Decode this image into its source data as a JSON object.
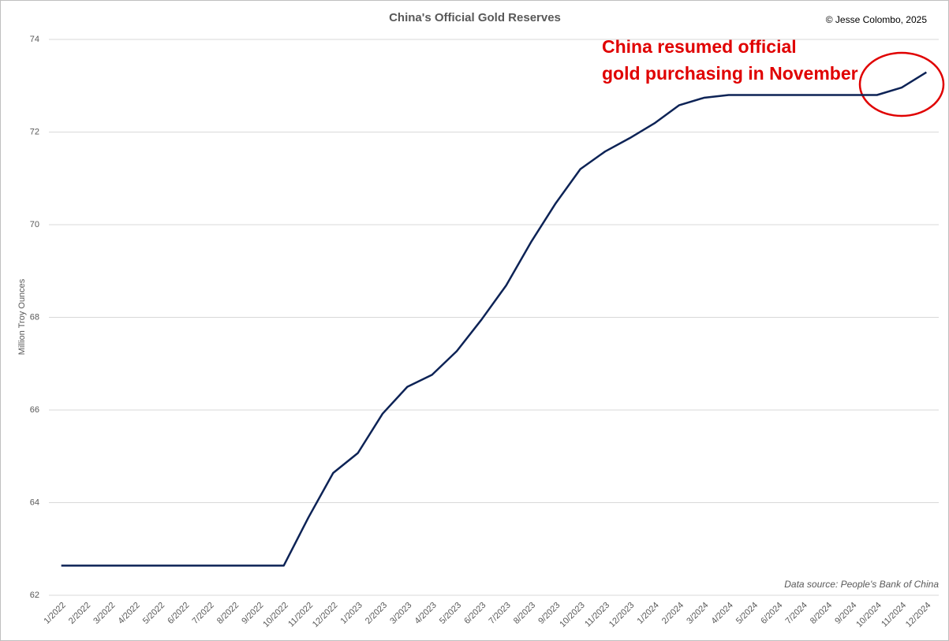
{
  "chart_data": {
    "type": "line",
    "title": "China's Official Gold Reserves",
    "credit": "© Jesse Colombo, 2025",
    "source": "Data source: People's Bank of China",
    "y_label": "Million Troy Ounces",
    "annotation": [
      "China resumed official",
      "gold purchasing in November"
    ],
    "categories": [
      "1/2022",
      "2/2022",
      "3/2022",
      "4/2022",
      "5/2022",
      "6/2022",
      "7/2022",
      "8/2022",
      "9/2022",
      "10/2022",
      "11/2022",
      "12/2022",
      "1/2023",
      "2/2023",
      "3/2023",
      "4/2023",
      "5/2023",
      "6/2023",
      "7/2023",
      "8/2023",
      "9/2023",
      "10/2023",
      "11/2023",
      "12/2023",
      "1/2024",
      "2/2024",
      "3/2024",
      "4/2024",
      "5/2024",
      "6/2024",
      "7/2024",
      "8/2024",
      "9/2024",
      "10/2024",
      "11/2024",
      "12/2024"
    ],
    "series": [
      {
        "name": "Gold reserves",
        "color": "#0d2356",
        "values": [
          62.64,
          62.64,
          62.64,
          62.64,
          62.64,
          62.64,
          62.64,
          62.64,
          62.64,
          62.64,
          63.68,
          64.64,
          65.07,
          65.92,
          66.5,
          66.76,
          67.27,
          67.95,
          68.69,
          69.62,
          70.46,
          71.2,
          71.58,
          71.87,
          72.19,
          72.58,
          72.74,
          72.8,
          72.8,
          72.8,
          72.8,
          72.8,
          72.8,
          72.8,
          72.96,
          73.29
        ]
      }
    ],
    "ylim": [
      62,
      74
    ],
    "yticks": [
      62,
      64,
      66,
      68,
      70,
      72,
      74
    ],
    "grid": true
  }
}
